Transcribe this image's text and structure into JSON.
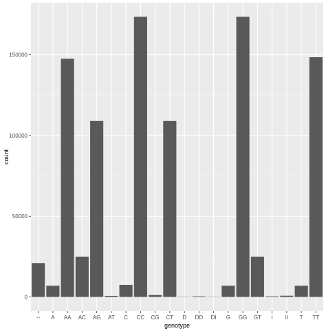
{
  "chart_data": {
    "type": "bar",
    "xlabel": "genotype",
    "ylabel": "count",
    "categories": [
      "--",
      "A",
      "AA",
      "AC",
      "AG",
      "AT",
      "C",
      "CC",
      "CG",
      "CT",
      "D",
      "DD",
      "DI",
      "G",
      "GG",
      "GT",
      "I",
      "II",
      "T",
      "TT"
    ],
    "values": [
      21000,
      7000,
      147500,
      25000,
      109000,
      700,
      7500,
      173500,
      1200,
      109000,
      50,
      400,
      50,
      7000,
      173500,
      25000,
      400,
      800,
      7000,
      148500
    ],
    "y_ticks": [
      0,
      50000,
      100000,
      150000
    ],
    "y_tick_labels": [
      "0",
      "50000",
      "100000",
      "150000"
    ],
    "ylim": [
      -8700,
      182200
    ],
    "grid": true,
    "colors": {
      "panel": "#ebebeb",
      "grid_major": "#ffffff",
      "grid_minor": "#f5f5f5",
      "bar": "#595959",
      "tick_text": "#4d4d4d",
      "tick_mark": "#333333"
    }
  }
}
